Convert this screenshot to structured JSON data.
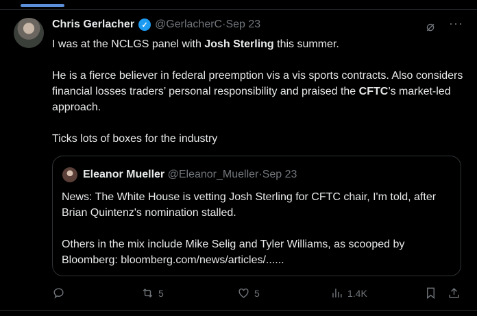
{
  "tweet": {
    "author_name": "Chris Gerlacher",
    "handle": "@GerlacherC",
    "separator": " · ",
    "date": "Sep 23",
    "paragraphs": [
      [
        "I was at the NCLGS panel with ",
        "Josh Sterling",
        " this summer."
      ],
      [
        "He is a fierce believer in federal preemption vis a vis sports contracts. Also considers financial losses traders’ personal responsibility and praised the ",
        "CFTC",
        "’s market-led approach."
      ],
      [
        "Ticks lots of boxes for the industry"
      ]
    ],
    "grok_icon": "grok-icon",
    "more_icon": "more-icon"
  },
  "quote": {
    "author_name": "Eleanor Mueller",
    "handle": "@Eleanor_Mueller",
    "separator": " · ",
    "date": "Sep 23",
    "paragraphs": [
      "News: The White House is vetting Josh Sterling for CFTC chair, I'm told, after Brian Quintenz's nomination stalled.",
      "Others in the mix include Mike Selig and Tyler Williams, as scooped by Bloomberg: bloomberg.com/news/articles/......"
    ]
  },
  "actions": {
    "replies": "",
    "reposts": "5",
    "likes": "5",
    "views": "1.4K"
  },
  "colors": {
    "verified": "#1d9bf0",
    "muted": "#71767b",
    "background": "#000000"
  }
}
